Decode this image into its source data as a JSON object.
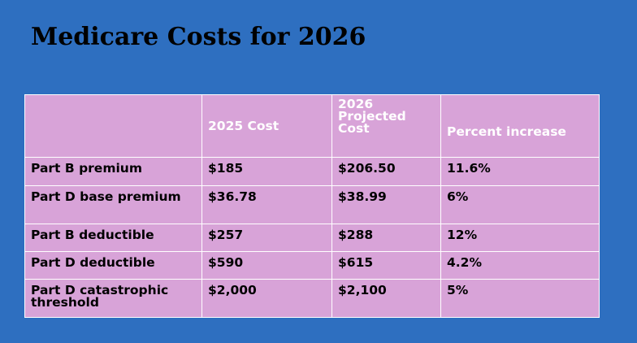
{
  "slide": {
    "title": "Medicare Costs for 2026"
  },
  "table": {
    "headers": [
      "",
      "2025 Cost",
      "2026 Projected Cost",
      "Percent increase"
    ],
    "rows": [
      [
        "Part B premium",
        "$185",
        "$206.50",
        "11.6%"
      ],
      [
        "Part D base premium",
        "$36.78",
        "$38.99",
        "6%"
      ],
      [
        "Part B deductible",
        "$257",
        "$288",
        "12%"
      ],
      [
        "Part D deductible",
        "$590",
        "$615",
        "4.2%"
      ],
      [
        "Part D catastrophic threshold",
        "$2,000",
        "$2,100",
        "5%"
      ]
    ]
  },
  "colors": {
    "background": "#2e6fc0",
    "table_fill": "#d8a3d8",
    "header_text": "#ffffff",
    "body_text": "#000000",
    "grid_lines": "#ffffff"
  }
}
